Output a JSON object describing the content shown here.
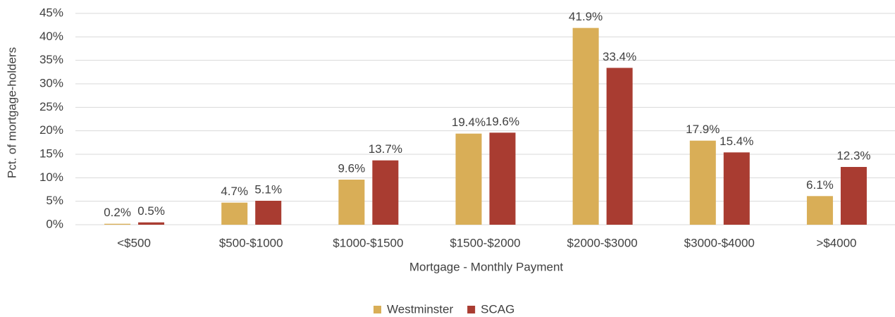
{
  "chart_data": {
    "type": "bar",
    "x_label": "Mortgage - Monthly Payment",
    "y_label": "Pct. of mortgage-holders",
    "categories": [
      "<$500",
      "$500-$1000",
      "$1000-$1500",
      "$1500-$2000",
      "$2000-$3000",
      "$3000-$4000",
      ">$4000"
    ],
    "series": [
      {
        "name": "Westminster",
        "color": "#d9ae57",
        "values": [
          0.2,
          4.7,
          9.6,
          19.4,
          41.9,
          17.9,
          6.1
        ],
        "value_labels": [
          "0.2%",
          "4.7%",
          "9.6%",
          "19.4%",
          "41.9%",
          "17.9%",
          "6.1%"
        ]
      },
      {
        "name": "SCAG",
        "color": "#a93c31",
        "values": [
          0.5,
          5.1,
          13.7,
          19.6,
          33.4,
          15.4,
          12.3
        ],
        "value_labels": [
          "0.5%",
          "5.1%",
          "13.7%",
          "19.6%",
          "33.4%",
          "15.4%",
          "12.3%"
        ]
      }
    ],
    "ylim": [
      0,
      45
    ],
    "yticks": [
      {
        "value": 0,
        "label": "0%"
      },
      {
        "value": 5,
        "label": "5%"
      },
      {
        "value": 10,
        "label": "10%"
      },
      {
        "value": 15,
        "label": "15%"
      },
      {
        "value": 20,
        "label": "20%"
      },
      {
        "value": 25,
        "label": "25%"
      },
      {
        "value": 30,
        "label": "30%"
      },
      {
        "value": 35,
        "label": "35%"
      },
      {
        "value": 40,
        "label": "40%"
      },
      {
        "value": 45,
        "label": "45%"
      }
    ],
    "grid": true,
    "legend": "bottom"
  }
}
